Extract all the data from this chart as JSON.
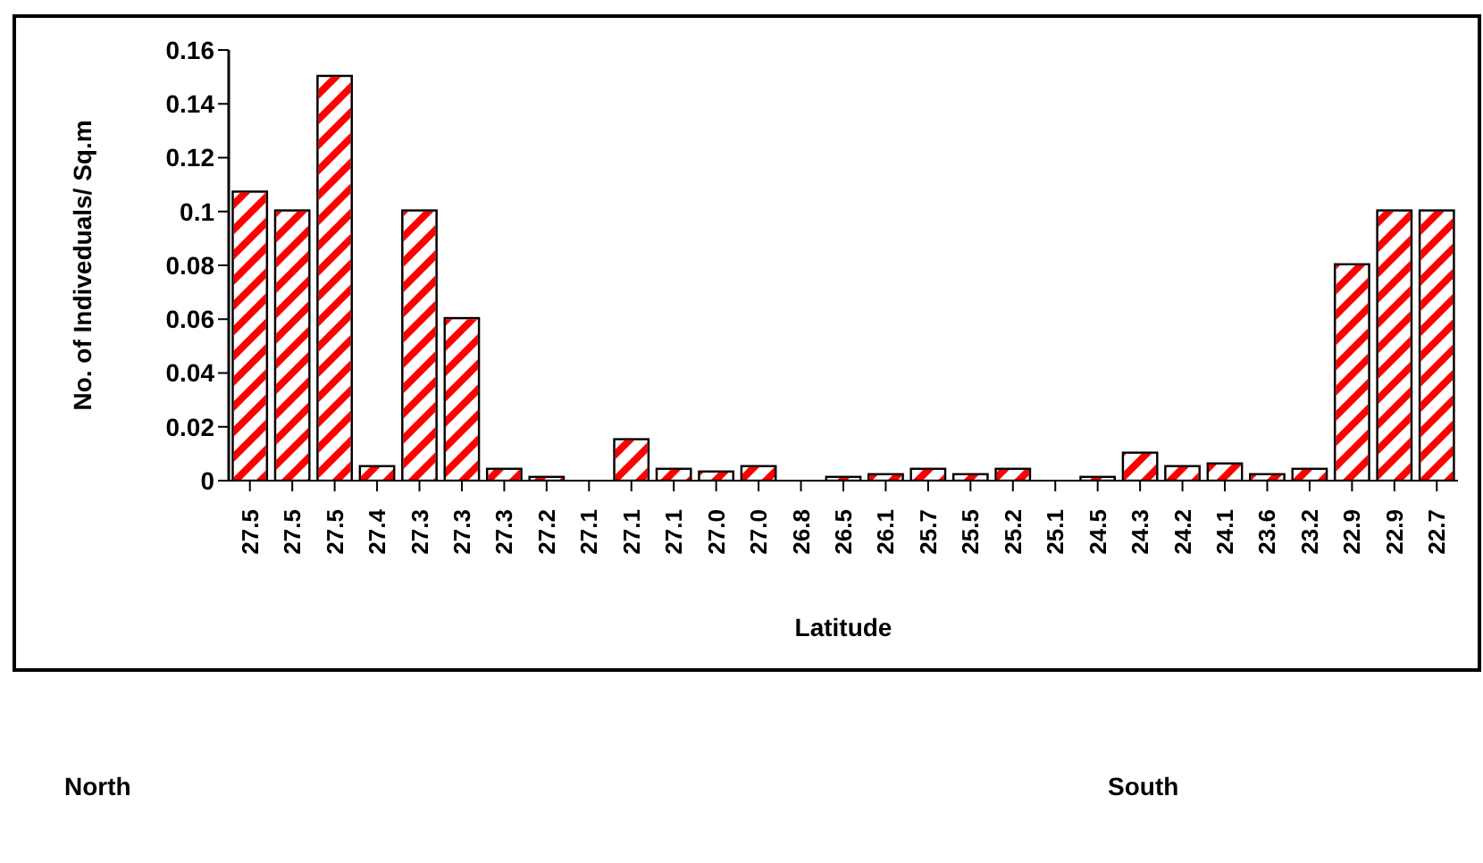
{
  "chart_data": {
    "type": "bar",
    "xlabel": "Latitude",
    "ylabel": "No. of Indiveduals/ Sq.m",
    "categories": [
      "27.5",
      "27.5",
      "27.5",
      "27.4",
      "27.3",
      "27.3",
      "27.3",
      "27.2",
      "27.1",
      "27.1",
      "27.1",
      "27.0",
      "27.0",
      "26.8",
      "26.5",
      "26.1",
      "25.7",
      "25.5",
      "25.2",
      "25.1",
      "24.5",
      "24.3",
      "24.2",
      "24.1",
      "23.6",
      "23.2",
      "22.9",
      "22.9",
      "22.7"
    ],
    "values": [
      0.107,
      0.1,
      0.15,
      0.005,
      0.1,
      0.06,
      0.004,
      0.001,
      0,
      0.015,
      0.004,
      0.003,
      0.005,
      0,
      0.001,
      0.002,
      0.004,
      0.002,
      0.004,
      0,
      0.001,
      0.01,
      0.005,
      0.006,
      0.002,
      0.004,
      0.08,
      0.1,
      0.1
    ],
    "color": "#ff0000",
    "ylim": [
      0,
      0.16
    ],
    "yticks": [
      0,
      0.02,
      0.04,
      0.06,
      0.08,
      {
        "value": 0.1,
        "label": "0.1"
      },
      0.12,
      0.14,
      0.16
    ],
    "grid": false,
    "annotations": [
      "North",
      "South"
    ]
  }
}
